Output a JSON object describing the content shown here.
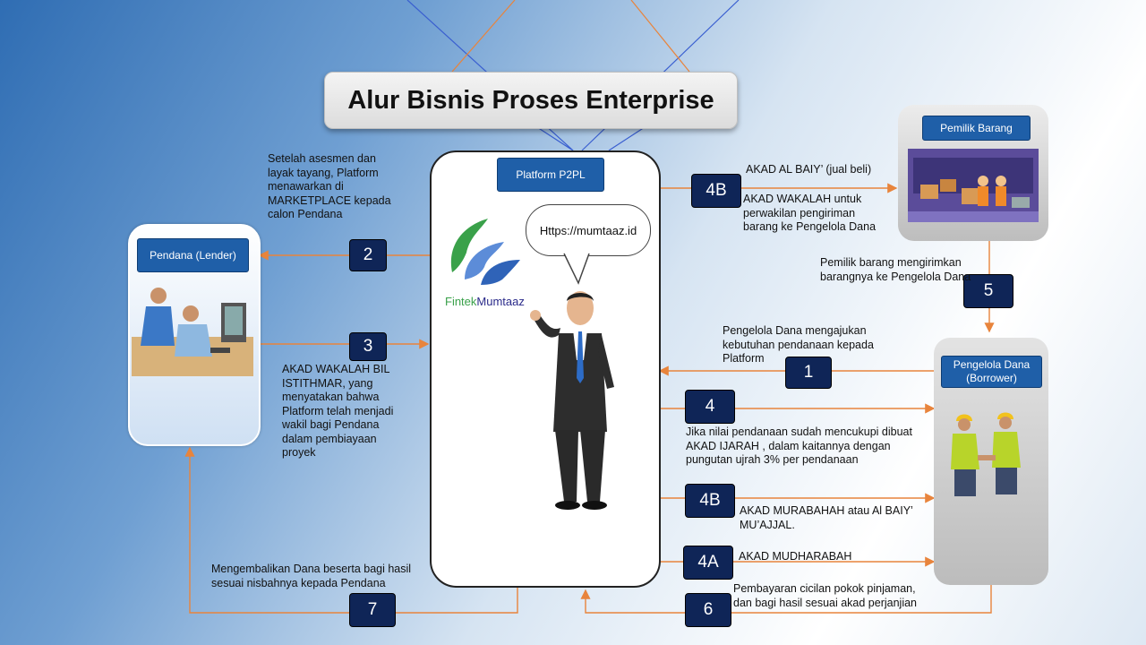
{
  "title": "Alur Bisnis Proses Enterprise",
  "platform": {
    "label": "Platform P2PL",
    "url_bubble": "Https://mumtaaz.id",
    "logo_text_left": "Fintek",
    "logo_text_right": "Mumtaaz"
  },
  "lender": {
    "label": "Pendana (Lender)"
  },
  "owner": {
    "label": "Pemilik Barang"
  },
  "borrower": {
    "label_line1": "Pengelola Dana",
    "label_line2": "(Borrower)"
  },
  "steps": {
    "s1": "1",
    "s2": "2",
    "s3": "3",
    "s4": "4",
    "s4b_top": "4B",
    "s4b": "4B",
    "s4a": "4A",
    "s5": "5",
    "s6": "6",
    "s7": "7"
  },
  "texts": {
    "t2": [
      "Setelah asesmen dan",
      "layak tayang, Platform",
      "menawarkan di",
      "MARKETPLACE kepada",
      "calon Pendana"
    ],
    "t3": [
      "AKAD WAKALAH BIL",
      "ISTITHMAR, yang",
      "menyatakan bahwa",
      "Platform telah menjadi",
      "wakil bagi Pendana",
      "dalam pembiayaan",
      "proyek"
    ],
    "t4b_top_a": "AKAD AL BAIY’ (jual beli)",
    "t4b_top_b": [
      "AKAD WAKALAH untuk",
      "perwakilan pengiriman",
      "barang ke Pengelola Dana"
    ],
    "t5": [
      "Pemilik barang mengirimkan",
      "barangnya ke Pengelola Dana"
    ],
    "t1": [
      "Pengelola Dana mengajukan",
      "kebutuhan pendanaan kepada",
      "Platform"
    ],
    "t4": [
      "Jika nilai pendanaan sudah mencukupi dibuat",
      "AKAD IJARAH , dalam kaitannya dengan",
      "pungutan ujrah 3% per pendanaan"
    ],
    "t4b": [
      "AKAD MURABAHAH atau Al BAIY’",
      "MU’AJJAL."
    ],
    "t4a": "AKAD MUDHARABAH",
    "t6": [
      "Pembayaran cicilan pokok pinjaman,",
      "dan bagi hasil sesuai akad perjanjian"
    ],
    "t7": [
      "Mengembalikan Dana beserta bagi hasil",
      "sesuai nisbahnya kepada Pendana"
    ]
  },
  "colors": {
    "arrow": "#e8843c",
    "num_bg": "#0f2557",
    "label_bg": "#1f5fa8"
  }
}
